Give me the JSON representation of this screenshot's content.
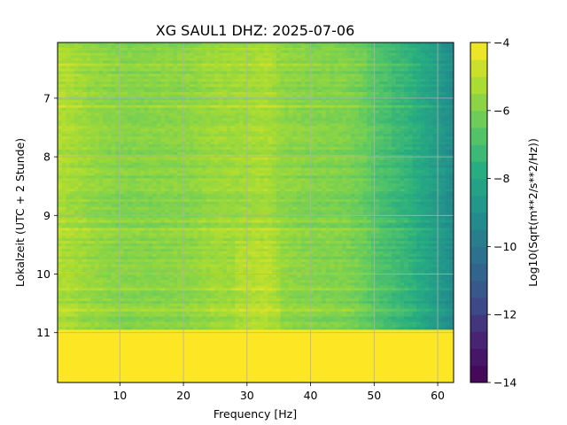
{
  "chart_data": {
    "type": "heatmap",
    "title": "XG SAUL1  DHZ: 2025-07-06",
    "xlabel": "Frequency [Hz]",
    "ylabel": "Lokalzeit (UTC + 2 Stunde)",
    "colorbar_label": "Log10(Sqrt(m**2/s**2/Hz))",
    "xlim": [
      0.2,
      62.5
    ],
    "ylim": [
      11.85,
      6.05
    ],
    "x_ticks": [
      10,
      20,
      30,
      40,
      50,
      60
    ],
    "y_ticks": [
      7,
      8,
      9,
      10,
      11
    ],
    "colorbar_range": [
      -14,
      -4
    ],
    "colorbar_ticks": [
      -4,
      -6,
      -8,
      -10,
      -12,
      -14
    ],
    "colormap": "viridis",
    "grid": true,
    "data_end_time": 10.95,
    "no_data_value": -4,
    "frequency_profile": {
      "frequency": [
        0,
        5,
        10,
        20,
        25,
        28,
        33,
        35,
        40,
        45,
        48,
        50,
        55,
        60,
        62.5
      ],
      "level": [
        -5.2,
        -5.6,
        -5.9,
        -5.8,
        -5.5,
        -5.5,
        -5.3,
        -5.7,
        -5.9,
        -6.0,
        -6.3,
        -6.8,
        -7.5,
        -8.6,
        -9.4
      ]
    },
    "colors": {
      "grid": "#b0b0b0",
      "no_data": "#fde725"
    }
  }
}
